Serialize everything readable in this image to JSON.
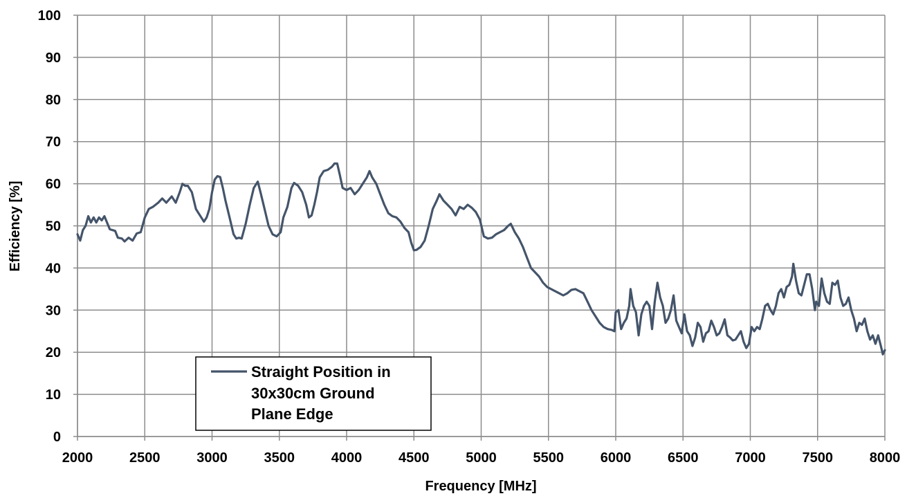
{
  "chart_data": {
    "type": "line",
    "title": "",
    "xlabel": "Frequency [MHz]",
    "ylabel": "Efficiency [%]",
    "xlim": [
      2000,
      8000
    ],
    "ylim": [
      0,
      100
    ],
    "xticks": [
      2000,
      2500,
      3000,
      3500,
      4000,
      4500,
      5000,
      5500,
      6000,
      6500,
      7000,
      7500,
      8000
    ],
    "yticks": [
      0,
      10,
      20,
      30,
      40,
      50,
      60,
      70,
      80,
      90,
      100
    ],
    "grid": true,
    "legend_position": "bottom-left",
    "line_color": "#44546a",
    "series": [
      {
        "name": "Straight Position in 30x30cm Ground Plane Edge",
        "legend_lines": [
          "Straight Position in",
          "30x30cm Ground",
          "Plane Edge"
        ],
        "points": [
          [
            2000,
            48
          ],
          [
            2020,
            46.5
          ],
          [
            2040,
            49
          ],
          [
            2060,
            50
          ],
          [
            2080,
            52.3
          ],
          [
            2100,
            50.8
          ],
          [
            2120,
            52
          ],
          [
            2140,
            50.8
          ],
          [
            2160,
            52
          ],
          [
            2180,
            51.3
          ],
          [
            2200,
            52.3
          ],
          [
            2240,
            49.2
          ],
          [
            2280,
            48.8
          ],
          [
            2300,
            47.2
          ],
          [
            2330,
            47
          ],
          [
            2350,
            46.3
          ],
          [
            2380,
            47.2
          ],
          [
            2410,
            46.5
          ],
          [
            2440,
            48.2
          ],
          [
            2470,
            48.5
          ],
          [
            2500,
            52
          ],
          [
            2530,
            54
          ],
          [
            2560,
            54.5
          ],
          [
            2600,
            55.5
          ],
          [
            2630,
            56.5
          ],
          [
            2660,
            55.5
          ],
          [
            2700,
            57
          ],
          [
            2730,
            55.5
          ],
          [
            2760,
            58
          ],
          [
            2780,
            60
          ],
          [
            2800,
            59.5
          ],
          [
            2820,
            59.5
          ],
          [
            2850,
            58
          ],
          [
            2880,
            54
          ],
          [
            2900,
            53
          ],
          [
            2920,
            52
          ],
          [
            2940,
            51
          ],
          [
            2960,
            52
          ],
          [
            2980,
            54
          ],
          [
            3000,
            58
          ],
          [
            3020,
            61
          ],
          [
            3040,
            61.8
          ],
          [
            3060,
            61.6
          ],
          [
            3080,
            59
          ],
          [
            3100,
            56
          ],
          [
            3130,
            52
          ],
          [
            3160,
            48
          ],
          [
            3180,
            47
          ],
          [
            3200,
            47.2
          ],
          [
            3220,
            47
          ],
          [
            3250,
            50.5
          ],
          [
            3280,
            55
          ],
          [
            3310,
            59
          ],
          [
            3340,
            60.5
          ],
          [
            3360,
            58
          ],
          [
            3390,
            54
          ],
          [
            3420,
            50
          ],
          [
            3450,
            48
          ],
          [
            3480,
            47.5
          ],
          [
            3510,
            48.5
          ],
          [
            3530,
            52
          ],
          [
            3560,
            54.5
          ],
          [
            3590,
            59
          ],
          [
            3610,
            60.2
          ],
          [
            3640,
            59.5
          ],
          [
            3670,
            58
          ],
          [
            3700,
            55
          ],
          [
            3720,
            52
          ],
          [
            3740,
            52.5
          ],
          [
            3760,
            55
          ],
          [
            3780,
            58
          ],
          [
            3800,
            61.5
          ],
          [
            3830,
            63
          ],
          [
            3860,
            63.3
          ],
          [
            3890,
            64
          ],
          [
            3910,
            64.8
          ],
          [
            3930,
            64.8
          ],
          [
            3950,
            62
          ],
          [
            3970,
            59
          ],
          [
            4000,
            58.5
          ],
          [
            4030,
            59
          ],
          [
            4060,
            57.5
          ],
          [
            4090,
            58.5
          ],
          [
            4120,
            60
          ],
          [
            4150,
            61.5
          ],
          [
            4170,
            63
          ],
          [
            4190,
            61.5
          ],
          [
            4220,
            60
          ],
          [
            4250,
            57.5
          ],
          [
            4280,
            55
          ],
          [
            4310,
            53
          ],
          [
            4340,
            52.3
          ],
          [
            4370,
            52
          ],
          [
            4400,
            51
          ],
          [
            4430,
            49.5
          ],
          [
            4460,
            48.5
          ],
          [
            4480,
            46
          ],
          [
            4500,
            44.2
          ],
          [
            4520,
            44.3
          ],
          [
            4550,
            45
          ],
          [
            4580,
            46.5
          ],
          [
            4610,
            50
          ],
          [
            4640,
            54
          ],
          [
            4670,
            56
          ],
          [
            4690,
            57.5
          ],
          [
            4720,
            56
          ],
          [
            4750,
            55
          ],
          [
            4780,
            54
          ],
          [
            4810,
            52.5
          ],
          [
            4840,
            54.5
          ],
          [
            4870,
            54
          ],
          [
            4900,
            55
          ],
          [
            4930,
            54.3
          ],
          [
            4960,
            53.3
          ],
          [
            4990,
            51.5
          ],
          [
            5020,
            47.5
          ],
          [
            5050,
            47
          ],
          [
            5080,
            47.2
          ],
          [
            5110,
            48
          ],
          [
            5140,
            48.5
          ],
          [
            5170,
            49
          ],
          [
            5200,
            50
          ],
          [
            5220,
            50.5
          ],
          [
            5250,
            48.5
          ],
          [
            5280,
            47
          ],
          [
            5310,
            45
          ],
          [
            5340,
            42.5
          ],
          [
            5370,
            40
          ],
          [
            5400,
            39
          ],
          [
            5430,
            38
          ],
          [
            5460,
            36.5
          ],
          [
            5490,
            35.5
          ],
          [
            5520,
            35
          ],
          [
            5550,
            34.5
          ],
          [
            5580,
            34
          ],
          [
            5610,
            33.5
          ],
          [
            5640,
            34
          ],
          [
            5670,
            34.8
          ],
          [
            5700,
            35
          ],
          [
            5730,
            34.5
          ],
          [
            5760,
            34
          ],
          [
            5790,
            32
          ],
          [
            5820,
            30
          ],
          [
            5850,
            28.5
          ],
          [
            5880,
            27
          ],
          [
            5910,
            26
          ],
          [
            5940,
            25.5
          ],
          [
            5970,
            25.3
          ],
          [
            5990,
            25
          ],
          [
            6000,
            29.5
          ],
          [
            6020,
            30
          ],
          [
            6040,
            25.5
          ],
          [
            6060,
            27
          ],
          [
            6080,
            28
          ],
          [
            6100,
            31
          ],
          [
            6110,
            35
          ],
          [
            6130,
            31
          ],
          [
            6150,
            29.5
          ],
          [
            6170,
            24
          ],
          [
            6190,
            29
          ],
          [
            6210,
            31
          ],
          [
            6230,
            32
          ],
          [
            6250,
            31
          ],
          [
            6270,
            25.5
          ],
          [
            6290,
            32
          ],
          [
            6310,
            36.5
          ],
          [
            6330,
            33
          ],
          [
            6350,
            31
          ],
          [
            6370,
            27
          ],
          [
            6390,
            28
          ],
          [
            6410,
            30
          ],
          [
            6430,
            33.5
          ],
          [
            6450,
            27.5
          ],
          [
            6470,
            26
          ],
          [
            6490,
            24.5
          ],
          [
            6510,
            29
          ],
          [
            6530,
            25
          ],
          [
            6550,
            24
          ],
          [
            6570,
            21.5
          ],
          [
            6590,
            23.5
          ],
          [
            6610,
            27
          ],
          [
            6630,
            26
          ],
          [
            6650,
            22.5
          ],
          [
            6670,
            24.5
          ],
          [
            6690,
            25
          ],
          [
            6710,
            27.5
          ],
          [
            6730,
            26
          ],
          [
            6750,
            24
          ],
          [
            6770,
            24.5
          ],
          [
            6790,
            26
          ],
          [
            6810,
            27.8
          ],
          [
            6830,
            24
          ],
          [
            6850,
            23.5
          ],
          [
            6870,
            22.8
          ],
          [
            6890,
            23
          ],
          [
            6910,
            24
          ],
          [
            6930,
            25
          ],
          [
            6950,
            22.5
          ],
          [
            6970,
            21
          ],
          [
            6990,
            22
          ],
          [
            7010,
            26
          ],
          [
            7030,
            25
          ],
          [
            7050,
            26
          ],
          [
            7070,
            25.5
          ],
          [
            7090,
            28
          ],
          [
            7110,
            31
          ],
          [
            7130,
            31.5
          ],
          [
            7150,
            30
          ],
          [
            7170,
            29
          ],
          [
            7190,
            31
          ],
          [
            7210,
            34
          ],
          [
            7230,
            35
          ],
          [
            7250,
            33
          ],
          [
            7270,
            35.5
          ],
          [
            7290,
            36
          ],
          [
            7310,
            38
          ],
          [
            7320,
            41
          ],
          [
            7340,
            37
          ],
          [
            7360,
            34
          ],
          [
            7380,
            33.5
          ],
          [
            7400,
            36
          ],
          [
            7420,
            38.5
          ],
          [
            7440,
            38.5
          ],
          [
            7460,
            35
          ],
          [
            7480,
            30
          ],
          [
            7490,
            32
          ],
          [
            7510,
            31
          ],
          [
            7530,
            37.5
          ],
          [
            7550,
            34
          ],
          [
            7570,
            32
          ],
          [
            7590,
            31.5
          ],
          [
            7610,
            36.5
          ],
          [
            7630,
            36
          ],
          [
            7650,
            37
          ],
          [
            7670,
            33
          ],
          [
            7690,
            31
          ],
          [
            7710,
            31.5
          ],
          [
            7730,
            33
          ],
          [
            7750,
            30
          ],
          [
            7770,
            28
          ],
          [
            7790,
            25
          ],
          [
            7810,
            27
          ],
          [
            7830,
            26.5
          ],
          [
            7850,
            28
          ],
          [
            7870,
            25
          ],
          [
            7890,
            23
          ],
          [
            7910,
            24
          ],
          [
            7930,
            22
          ],
          [
            7950,
            24
          ],
          [
            7970,
            21.5
          ],
          [
            7985,
            19.5
          ],
          [
            8000,
            20.5
          ]
        ]
      }
    ]
  }
}
